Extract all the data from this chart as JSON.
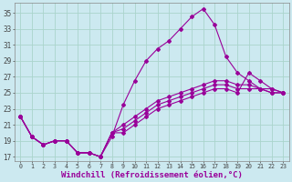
{
  "background_color": "#cce9f0",
  "grid_color": "#aad4cc",
  "line_color": "#990099",
  "xlabel": "Windchill (Refroidissement éolien,°C)",
  "xlabel_fontsize": 6.5,
  "ytick_fontsize": 5.5,
  "xtick_fontsize": 4.8,
  "yticks": [
    17,
    19,
    21,
    23,
    25,
    27,
    29,
    31,
    33,
    35
  ],
  "xticks": [
    0,
    1,
    2,
    3,
    4,
    5,
    6,
    7,
    8,
    9,
    10,
    11,
    12,
    13,
    14,
    15,
    16,
    17,
    18,
    19,
    20,
    21,
    22,
    23
  ],
  "xlim": [
    -0.5,
    23.5
  ],
  "ylim": [
    16.5,
    36.2
  ],
  "lines": [
    {
      "x": [
        0,
        1,
        2,
        3,
        4,
        5,
        6,
        7,
        8,
        9,
        10,
        11,
        12,
        13,
        14,
        15,
        16,
        17,
        18,
        19,
        20,
        21,
        22,
        23
      ],
      "y": [
        22,
        19.5,
        18.5,
        19,
        19,
        17.5,
        17.5,
        17,
        19.5,
        23.5,
        26.5,
        29,
        30.5,
        31.5,
        33,
        34.5,
        35.5,
        33.5,
        29.5,
        27.5,
        26.5,
        25.5,
        25.5,
        25
      ]
    },
    {
      "x": [
        0,
        1,
        2,
        3,
        4,
        5,
        6,
        7,
        8,
        9,
        10,
        11,
        12,
        13,
        14,
        15,
        16,
        17,
        18,
        19,
        20,
        21,
        22,
        23
      ],
      "y": [
        22,
        19.5,
        18.5,
        19,
        19,
        17.5,
        17.5,
        17,
        20,
        20,
        21,
        22,
        23,
        23.5,
        24,
        24.5,
        25,
        25.5,
        25.5,
        25,
        27.5,
        26.5,
        25.5,
        25
      ]
    },
    {
      "x": [
        0,
        1,
        2,
        3,
        4,
        5,
        6,
        7,
        8,
        9,
        10,
        11,
        12,
        13,
        14,
        15,
        16,
        17,
        18,
        19,
        20,
        21,
        22,
        23
      ],
      "y": [
        22,
        19.5,
        18.5,
        19,
        19,
        17.5,
        17.5,
        17,
        20,
        20.5,
        21.5,
        22.5,
        23.5,
        24,
        24.5,
        25,
        25.5,
        26,
        26,
        25.5,
        25.5,
        25.5,
        25,
        25
      ]
    },
    {
      "x": [
        0,
        1,
        2,
        3,
        4,
        5,
        6,
        7,
        8,
        9,
        10,
        11,
        12,
        13,
        14,
        15,
        16,
        17,
        18,
        19,
        20,
        21,
        22,
        23
      ],
      "y": [
        22,
        19.5,
        18.5,
        19,
        19,
        17.5,
        17.5,
        17,
        20,
        21,
        22,
        23,
        24,
        24.5,
        25,
        25.5,
        26,
        26.5,
        26.5,
        26,
        26,
        25.5,
        25,
        25
      ]
    }
  ]
}
